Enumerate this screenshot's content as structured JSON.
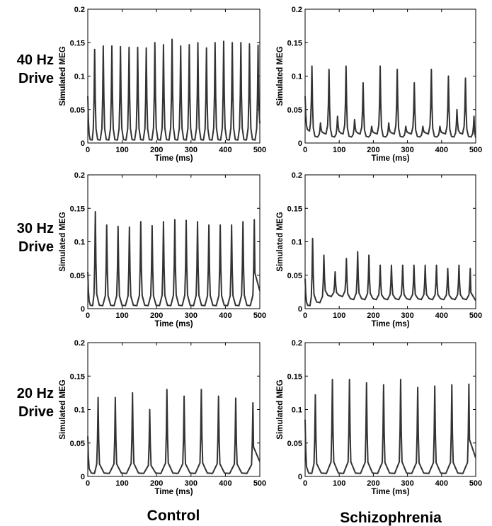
{
  "row_labels": [
    [
      "40 Hz",
      "Drive"
    ],
    [
      "30 Hz",
      "Drive"
    ],
    [
      "20 Hz",
      "Drive"
    ]
  ],
  "column_labels": [
    "Control",
    "Schizophrenia"
  ],
  "axis": {
    "xlabel": "Time (ms)",
    "ylabel": "Simulated MEG",
    "xlim": [
      0,
      500
    ],
    "ylim": [
      0,
      0.2
    ],
    "xticks": [
      "0",
      "100",
      "200",
      "300",
      "400",
      "500"
    ],
    "yticks": [
      "0",
      "0.05",
      "0.1",
      "0.15",
      "0.2"
    ]
  },
  "colors": {
    "trace": "#333333",
    "axes": "#000000",
    "background": "#ffffff"
  },
  "chart_data": [
    {
      "type": "line",
      "row": "40 Hz Drive",
      "column": "Control",
      "xlabel": "Time (ms)",
      "ylabel": "Simulated MEG",
      "xlim": [
        0,
        500
      ],
      "ylim": [
        0,
        0.2
      ],
      "grid": false,
      "peak_times": [
        0,
        20,
        45,
        70,
        95,
        120,
        145,
        170,
        195,
        220,
        245,
        270,
        295,
        320,
        345,
        370,
        395,
        420,
        445,
        470,
        495
      ],
      "peak_values": [
        0.07,
        0.14,
        0.145,
        0.145,
        0.144,
        0.143,
        0.143,
        0.142,
        0.15,
        0.147,
        0.155,
        0.145,
        0.147,
        0.15,
        0.142,
        0.15,
        0.152,
        0.15,
        0.15,
        0.148,
        0.146
      ],
      "trough_values": [
        0.005,
        0.005,
        0.005,
        0.005,
        0.005,
        0.005,
        0.005,
        0.005,
        0.005,
        0.005,
        0.005,
        0.005,
        0.005,
        0.005,
        0.005,
        0.005,
        0.005,
        0.005,
        0.005,
        0.005
      ]
    },
    {
      "type": "line",
      "row": "40 Hz Drive",
      "column": "Schizophrenia",
      "xlabel": "Time (ms)",
      "ylabel": "Simulated MEG",
      "xlim": [
        0,
        500
      ],
      "ylim": [
        0,
        0.2
      ],
      "grid": false,
      "peak_times": [
        0,
        20,
        45,
        70,
        95,
        120,
        145,
        170,
        195,
        220,
        245,
        270,
        295,
        320,
        345,
        370,
        395,
        420,
        445,
        470,
        495
      ],
      "peak_values": [
        0.07,
        0.115,
        0.03,
        0.11,
        0.04,
        0.115,
        0.035,
        0.09,
        0.025,
        0.115,
        0.03,
        0.11,
        0.025,
        0.09,
        0.025,
        0.11,
        0.025,
        0.1,
        0.05,
        0.097,
        0.04
      ],
      "trough_values": [
        0.02,
        0.01,
        0.015,
        0.01,
        0.015,
        0.01,
        0.015,
        0.01,
        0.015,
        0.01,
        0.015,
        0.01,
        0.015,
        0.01,
        0.015,
        0.01,
        0.015,
        0.01,
        0.015,
        0.01
      ]
    },
    {
      "type": "line",
      "row": "30 Hz Drive",
      "column": "Control",
      "xlabel": "Time (ms)",
      "ylabel": "Simulated MEG",
      "xlim": [
        0,
        500
      ],
      "ylim": [
        0,
        0.2
      ],
      "grid": false,
      "peak_times": [
        0,
        22,
        55,
        88,
        121,
        154,
        187,
        220,
        253,
        286,
        319,
        352,
        385,
        418,
        451,
        484
      ],
      "peak_values": [
        0.055,
        0.145,
        0.125,
        0.123,
        0.122,
        0.13,
        0.124,
        0.13,
        0.133,
        0.132,
        0.13,
        0.125,
        0.125,
        0.125,
        0.13,
        0.133
      ],
      "trough_values": [
        0.005,
        0.005,
        0.005,
        0.005,
        0.005,
        0.005,
        0.005,
        0.005,
        0.005,
        0.005,
        0.005,
        0.005,
        0.005,
        0.005,
        0.005
      ]
    },
    {
      "type": "line",
      "row": "30 Hz Drive",
      "column": "Schizophrenia",
      "xlabel": "Time (ms)",
      "ylabel": "Simulated MEG",
      "xlim": [
        0,
        500
      ],
      "ylim": [
        0,
        0.2
      ],
      "grid": false,
      "peak_times": [
        0,
        22,
        55,
        88,
        121,
        154,
        187,
        220,
        253,
        286,
        319,
        352,
        385,
        418,
        451,
        484
      ],
      "peak_values": [
        0.045,
        0.105,
        0.08,
        0.055,
        0.075,
        0.085,
        0.08,
        0.065,
        0.065,
        0.065,
        0.065,
        0.065,
        0.065,
        0.06,
        0.065,
        0.06
      ],
      "trough_values": [
        0.005,
        0.01,
        0.02,
        0.02,
        0.015,
        0.015,
        0.015,
        0.015,
        0.015,
        0.015,
        0.015,
        0.015,
        0.015,
        0.015,
        0.015
      ]
    },
    {
      "type": "line",
      "row": "20 Hz Drive",
      "column": "Control",
      "xlabel": "Time (ms)",
      "ylabel": "Simulated MEG",
      "xlim": [
        0,
        500
      ],
      "ylim": [
        0,
        0.2
      ],
      "grid": false,
      "peak_times": [
        0,
        30,
        80,
        130,
        180,
        230,
        280,
        330,
        380,
        430,
        480
      ],
      "peak_values": [
        0.06,
        0.118,
        0.118,
        0.125,
        0.1,
        0.13,
        0.12,
        0.13,
        0.12,
        0.117,
        0.11
      ],
      "trough_values": [
        0.005,
        0.005,
        0.005,
        0.005,
        0.005,
        0.005,
        0.005,
        0.005,
        0.005,
        0.005
      ]
    },
    {
      "type": "line",
      "row": "20 Hz Drive",
      "column": "Schizophrenia",
      "xlabel": "Time (ms)",
      "ylabel": "Simulated MEG",
      "xlim": [
        0,
        500
      ],
      "ylim": [
        0,
        0.2
      ],
      "grid": false,
      "peak_times": [
        0,
        30,
        80,
        130,
        180,
        230,
        280,
        330,
        380,
        430,
        480
      ],
      "peak_values": [
        0.085,
        0.122,
        0.145,
        0.145,
        0.14,
        0.137,
        0.145,
        0.133,
        0.135,
        0.137,
        0.138
      ],
      "trough_values": [
        0.005,
        0.005,
        0.005,
        0.005,
        0.005,
        0.005,
        0.005,
        0.005,
        0.005,
        0.005
      ]
    }
  ]
}
